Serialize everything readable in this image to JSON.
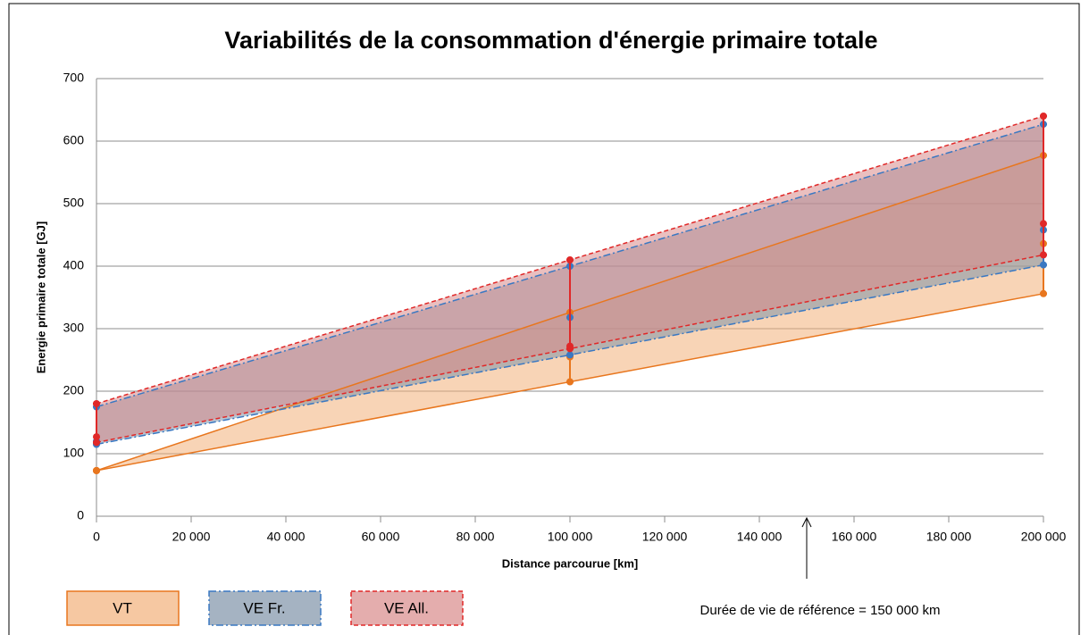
{
  "chart_data": {
    "type": "range-area",
    "title": "Variabilités de la consommation d'énergie primaire totale",
    "x_label": "Distance parcourue [km]",
    "y_label": "Energie primaire totale [GJ]",
    "x": [
      0,
      100000,
      200000
    ],
    "xlim": [
      0,
      200000
    ],
    "xticks": [
      0,
      {
        "value": 20000,
        "label": "20 000"
      },
      {
        "value": 40000,
        "label": "40 000"
      },
      {
        "value": 60000,
        "label": "60 000"
      },
      {
        "value": 80000,
        "label": "80 000"
      },
      {
        "value": 100000,
        "label": "100 000"
      },
      {
        "value": 120000,
        "label": "120 000"
      },
      {
        "value": 140000,
        "label": "140 000"
      },
      {
        "value": 160000,
        "label": "160 000"
      },
      {
        "value": 180000,
        "label": "180 000"
      },
      {
        "value": 200000,
        "label": "200 000"
      }
    ],
    "ylim": [
      0,
      700
    ],
    "yticks": [
      0,
      100,
      200,
      300,
      400,
      500,
      600,
      700
    ],
    "grid": true,
    "series": [
      {
        "name": "VT",
        "color": "#e8761e",
        "fill": "#f2b07a",
        "dash": "solid",
        "min": [
          73,
          215,
          356
        ],
        "max": [
          73,
          326,
          577
        ],
        "central": [
          73,
          255,
          436
        ]
      },
      {
        "name": "VE Fr.",
        "color": "#3a78c2",
        "fill": "#7f93a8",
        "dash": "dashdot",
        "min": [
          115,
          258,
          402
        ],
        "max": [
          175,
          400,
          627
        ],
        "central": [
          120,
          318,
          458
        ]
      },
      {
        "name": "VE All.",
        "color": "#e02828",
        "fill": "#d98a8a",
        "dash": "dashed",
        "min": [
          118,
          268,
          418
        ],
        "max": [
          180,
          410,
          640
        ],
        "central": [
          127,
          272,
          468
        ]
      }
    ],
    "annotation": {
      "text": "Durée de vie de référence = 150 000 km",
      "x": 150000
    }
  }
}
